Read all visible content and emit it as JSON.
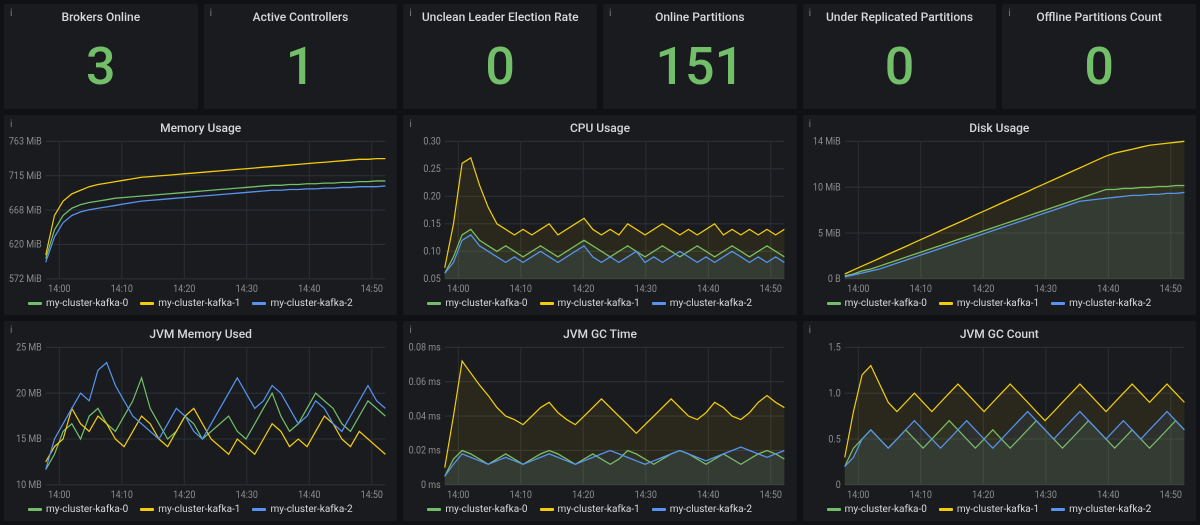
{
  "colors": {
    "green": "#73bf69",
    "yellow": "#f2cc0c",
    "teal": "#5794f2",
    "grid": "#2c2f33",
    "text": "#8e8e8e",
    "panel_bg": "#191b1f"
  },
  "x_ticks": [
    "14:00",
    "14:10",
    "14:20",
    "14:30",
    "14:40",
    "14:50"
  ],
  "legend_labels": [
    "my-cluster-kafka-0",
    "my-cluster-kafka-1",
    "my-cluster-kafka-2"
  ],
  "series_colors": [
    "#73bf69",
    "#f2cc0c",
    "#5794f2"
  ],
  "stats": [
    {
      "title": "Brokers Online",
      "value": "3",
      "color": "#73bf69"
    },
    {
      "title": "Active Controllers",
      "value": "1",
      "color": "#73bf69"
    },
    {
      "title": "Unclean Leader Election Rate",
      "value": "0",
      "color": "#73bf69"
    },
    {
      "title": "Online Partitions",
      "value": "151",
      "color": "#73bf69"
    },
    {
      "title": "Under Replicated Partitions",
      "value": "0",
      "color": "#73bf69"
    },
    {
      "title": "Offline Partitions Count",
      "value": "0",
      "color": "#73bf69"
    }
  ],
  "charts": [
    {
      "title": "Memory Usage",
      "y_ticks": [
        "572 MiB",
        "620 MiB",
        "668 MiB",
        "715 MiB",
        "763 MiB"
      ],
      "ylim": [
        572,
        763
      ],
      "fill": false,
      "series": [
        [
          600,
          640,
          660,
          670,
          675,
          678,
          680,
          682,
          684,
          685,
          686,
          687,
          688,
          689,
          690,
          691,
          692,
          693,
          694,
          695,
          696,
          697,
          698,
          699,
          700,
          701,
          702,
          702,
          703,
          703,
          704,
          704,
          705,
          705,
          706,
          706,
          707,
          707,
          708,
          708
        ],
        [
          605,
          660,
          680,
          690,
          695,
          700,
          703,
          705,
          707,
          709,
          711,
          713,
          714,
          715,
          716,
          717,
          718,
          719,
          720,
          721,
          722,
          723,
          724,
          725,
          726,
          727,
          728,
          729,
          730,
          731,
          732,
          733,
          734,
          735,
          736,
          737,
          738,
          738,
          739,
          739
        ],
        [
          595,
          630,
          650,
          660,
          665,
          668,
          670,
          672,
          674,
          676,
          678,
          680,
          681,
          682,
          683,
          684,
          685,
          686,
          687,
          688,
          689,
          690,
          691,
          692,
          693,
          694,
          695,
          695,
          696,
          696,
          697,
          697,
          698,
          698,
          699,
          699,
          700,
          700,
          700,
          701
        ]
      ]
    },
    {
      "title": "CPU Usage",
      "y_ticks": [
        "0.05",
        "0.10",
        "0.15",
        "0.20",
        "0.25",
        "0.30"
      ],
      "ylim": [
        0.05,
        0.3
      ],
      "fill": true,
      "series": [
        [
          0.06,
          0.09,
          0.13,
          0.14,
          0.12,
          0.11,
          0.1,
          0.11,
          0.1,
          0.09,
          0.1,
          0.11,
          0.1,
          0.09,
          0.1,
          0.11,
          0.12,
          0.11,
          0.1,
          0.09,
          0.1,
          0.11,
          0.1,
          0.09,
          0.1,
          0.11,
          0.1,
          0.09,
          0.1,
          0.11,
          0.1,
          0.09,
          0.1,
          0.11,
          0.1,
          0.09,
          0.1,
          0.11,
          0.1,
          0.09
        ],
        [
          0.07,
          0.15,
          0.26,
          0.27,
          0.22,
          0.18,
          0.15,
          0.14,
          0.13,
          0.14,
          0.13,
          0.14,
          0.15,
          0.13,
          0.14,
          0.15,
          0.16,
          0.14,
          0.13,
          0.14,
          0.13,
          0.15,
          0.14,
          0.13,
          0.14,
          0.15,
          0.14,
          0.13,
          0.14,
          0.13,
          0.14,
          0.15,
          0.13,
          0.14,
          0.13,
          0.14,
          0.13,
          0.14,
          0.13,
          0.14
        ],
        [
          0.06,
          0.08,
          0.12,
          0.13,
          0.11,
          0.1,
          0.09,
          0.08,
          0.09,
          0.08,
          0.09,
          0.1,
          0.09,
          0.08,
          0.09,
          0.1,
          0.11,
          0.09,
          0.08,
          0.09,
          0.08,
          0.09,
          0.1,
          0.08,
          0.09,
          0.08,
          0.09,
          0.1,
          0.09,
          0.08,
          0.09,
          0.08,
          0.09,
          0.1,
          0.09,
          0.08,
          0.09,
          0.08,
          0.09,
          0.08
        ]
      ]
    },
    {
      "title": "Disk Usage",
      "y_ticks": [
        "0 B",
        "5 MiB",
        "10 MiB",
        "14 MiB"
      ],
      "ylim": [
        0,
        14
      ],
      "fill": true,
      "series": [
        [
          0.3,
          0.5,
          0.8,
          1.0,
          1.3,
          1.6,
          1.9,
          2.2,
          2.5,
          2.8,
          3.1,
          3.4,
          3.7,
          4.0,
          4.3,
          4.6,
          4.9,
          5.2,
          5.5,
          5.8,
          6.1,
          6.4,
          6.7,
          7.0,
          7.3,
          7.6,
          7.9,
          8.2,
          8.5,
          8.8,
          9.1,
          9.1,
          9.2,
          9.2,
          9.3,
          9.3,
          9.4,
          9.4,
          9.5,
          9.5
        ],
        [
          0.5,
          0.9,
          1.3,
          1.7,
          2.1,
          2.5,
          2.9,
          3.3,
          3.7,
          4.1,
          4.5,
          4.9,
          5.3,
          5.7,
          6.1,
          6.5,
          6.9,
          7.3,
          7.7,
          8.1,
          8.5,
          8.9,
          9.3,
          9.7,
          10.1,
          10.5,
          10.9,
          11.3,
          11.7,
          12.1,
          12.5,
          12.8,
          13.0,
          13.2,
          13.4,
          13.6,
          13.7,
          13.8,
          13.9,
          14.0
        ],
        [
          0.2,
          0.4,
          0.6,
          0.8,
          1.0,
          1.3,
          1.6,
          1.9,
          2.2,
          2.5,
          2.8,
          3.1,
          3.4,
          3.7,
          4.0,
          4.3,
          4.6,
          4.9,
          5.2,
          5.5,
          5.8,
          6.1,
          6.4,
          6.7,
          7.0,
          7.3,
          7.6,
          7.9,
          8.0,
          8.1,
          8.2,
          8.3,
          8.4,
          8.5,
          8.5,
          8.6,
          8.6,
          8.7,
          8.7,
          8.8
        ]
      ]
    },
    {
      "title": "JVM Memory Used",
      "y_ticks": [
        "10 MB",
        "15 MB",
        "20 MB",
        "25 MB"
      ],
      "ylim": [
        8,
        26
      ],
      "fill": false,
      "series": [
        [
          10,
          12,
          15,
          16,
          14,
          17,
          18,
          16,
          15,
          17,
          19,
          22,
          18,
          16,
          14,
          15,
          17,
          16,
          14,
          15,
          16,
          17,
          15,
          14,
          16,
          18,
          20,
          17,
          15,
          16,
          18,
          20,
          19,
          18,
          16,
          15,
          17,
          19,
          18,
          17
        ],
        [
          11,
          13,
          14,
          18,
          16,
          15,
          17,
          16,
          14,
          13,
          15,
          17,
          16,
          14,
          13,
          15,
          17,
          18,
          16,
          14,
          13,
          12,
          14,
          13,
          12,
          14,
          16,
          15,
          13,
          14,
          13,
          15,
          17,
          16,
          14,
          13,
          15,
          14,
          13,
          12
        ],
        [
          10,
          14,
          16,
          18,
          20,
          19,
          23,
          24,
          21,
          19,
          17,
          16,
          15,
          14,
          16,
          18,
          17,
          15,
          14,
          16,
          18,
          20,
          22,
          20,
          18,
          19,
          21,
          20,
          18,
          16,
          17,
          19,
          18,
          16,
          15,
          17,
          19,
          21,
          19,
          18
        ]
      ]
    },
    {
      "title": "JVM GC Time",
      "y_ticks": [
        "0 ms",
        "0.02 ms",
        "0.04 ms",
        "0.06 ms",
        "0.08 ms"
      ],
      "ylim": [
        0,
        0.08
      ],
      "fill": true,
      "series": [
        [
          0.005,
          0.015,
          0.02,
          0.018,
          0.015,
          0.012,
          0.015,
          0.018,
          0.015,
          0.012,
          0.015,
          0.018,
          0.02,
          0.018,
          0.015,
          0.012,
          0.015,
          0.018,
          0.015,
          0.012,
          0.015,
          0.02,
          0.018,
          0.015,
          0.012,
          0.015,
          0.018,
          0.02,
          0.018,
          0.015,
          0.012,
          0.015,
          0.018,
          0.015,
          0.012,
          0.015,
          0.018,
          0.02,
          0.018,
          0.015
        ],
        [
          0.01,
          0.04,
          0.072,
          0.065,
          0.058,
          0.052,
          0.045,
          0.04,
          0.038,
          0.035,
          0.04,
          0.045,
          0.048,
          0.042,
          0.038,
          0.035,
          0.04,
          0.045,
          0.05,
          0.045,
          0.04,
          0.035,
          0.03,
          0.035,
          0.04,
          0.045,
          0.05,
          0.045,
          0.04,
          0.038,
          0.042,
          0.048,
          0.045,
          0.04,
          0.038,
          0.042,
          0.048,
          0.052,
          0.048,
          0.045
        ],
        [
          0.005,
          0.012,
          0.018,
          0.016,
          0.014,
          0.012,
          0.014,
          0.016,
          0.014,
          0.012,
          0.014,
          0.016,
          0.018,
          0.016,
          0.014,
          0.012,
          0.014,
          0.016,
          0.018,
          0.02,
          0.018,
          0.016,
          0.014,
          0.012,
          0.014,
          0.016,
          0.018,
          0.02,
          0.018,
          0.016,
          0.014,
          0.016,
          0.018,
          0.02,
          0.022,
          0.02,
          0.018,
          0.016,
          0.018,
          0.02
        ]
      ]
    },
    {
      "title": "JVM GC Count",
      "y_ticks": [
        "0",
        "0.5",
        "1.0",
        "1.5"
      ],
      "ylim": [
        0,
        1.5
      ],
      "fill": true,
      "series": [
        [
          0.2,
          0.4,
          0.5,
          0.6,
          0.5,
          0.4,
          0.5,
          0.6,
          0.5,
          0.4,
          0.5,
          0.6,
          0.7,
          0.6,
          0.5,
          0.4,
          0.5,
          0.6,
          0.5,
          0.4,
          0.5,
          0.6,
          0.7,
          0.6,
          0.5,
          0.4,
          0.5,
          0.6,
          0.7,
          0.6,
          0.5,
          0.4,
          0.5,
          0.6,
          0.5,
          0.4,
          0.5,
          0.6,
          0.7,
          0.6
        ],
        [
          0.3,
          0.8,
          1.2,
          1.3,
          1.1,
          0.9,
          0.8,
          0.9,
          1.0,
          0.9,
          0.8,
          0.9,
          1.0,
          1.1,
          1.0,
          0.9,
          0.8,
          0.9,
          1.0,
          1.1,
          1.0,
          0.9,
          0.8,
          0.7,
          0.8,
          0.9,
          1.0,
          1.1,
          1.0,
          0.9,
          0.8,
          0.9,
          1.0,
          1.1,
          1.0,
          0.9,
          1.0,
          1.1,
          1.0,
          0.9
        ],
        [
          0.2,
          0.3,
          0.5,
          0.6,
          0.5,
          0.4,
          0.5,
          0.6,
          0.7,
          0.6,
          0.5,
          0.4,
          0.5,
          0.6,
          0.7,
          0.6,
          0.5,
          0.4,
          0.5,
          0.6,
          0.7,
          0.8,
          0.7,
          0.6,
          0.5,
          0.6,
          0.7,
          0.8,
          0.7,
          0.6,
          0.5,
          0.6,
          0.7,
          0.6,
          0.5,
          0.6,
          0.7,
          0.8,
          0.7,
          0.6
        ]
      ]
    }
  ]
}
